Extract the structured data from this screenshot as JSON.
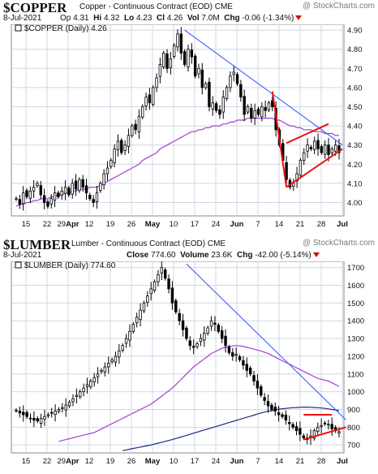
{
  "watermark": "@ StockCharts.com",
  "panels": [
    {
      "symbol": "$COPPER",
      "description": "Copper - Continuous Contract (EOD)",
      "exchange": "CME",
      "date": "8-Jul-2021",
      "quote": {
        "open_label": "Op",
        "open": "4.31",
        "high_label": "Hi",
        "high": "4.32",
        "low_label": "Lo",
        "low": "4.23",
        "close_label": "Cl",
        "close": "4.26",
        "vol_label": "Vol",
        "vol": "7.0M",
        "chg_label": "Chg",
        "chg": "-0.06 (-1.34%)"
      },
      "legend": "$COPPER (Daily) 4.26"
    },
    {
      "symbol": "$LUMBER",
      "description": "Lumber - Continuous Contract (EOD)",
      "exchange": "CME",
      "date": "8-Jul-2021",
      "quote": {
        "close_label": "Close",
        "close": "774.60",
        "vol_label": "Volume",
        "vol": "23.6K",
        "chg_label": "Chg",
        "chg": "-42.00 (-5.14%)"
      },
      "legend": "$LUMBER (Daily) 774.60"
    }
  ],
  "colors": {
    "up_candle": "#ffffff",
    "down_candle": "#000000",
    "ma_purple": "#a040d0",
    "ma_navy": "#1a2a80",
    "trend_blue": "#3050ff",
    "pattern_red": "#ee1010",
    "grid": "#cfd8e6"
  },
  "chart_data": [
    {
      "type": "candlestick",
      "title": "$COPPER (Daily) 4.26",
      "x_tick_labels": [
        "15",
        "22",
        "29Apr",
        "12",
        "19",
        "26",
        "May",
        "10",
        "17",
        "24",
        "Jun",
        "7",
        "14",
        "21",
        "28",
        "Jul"
      ],
      "bold_tick_labels": [
        "Apr",
        "May",
        "Jun",
        "Jul"
      ],
      "y_ticks": [
        4.0,
        4.1,
        4.2,
        4.3,
        4.4,
        4.5,
        4.6,
        4.7,
        4.8,
        4.9
      ],
      "ylim": [
        3.93,
        4.93
      ],
      "close": [
        4.02,
        3.99,
        4.05,
        4.03,
        4.06,
        4.08,
        4.1,
        4.04,
        4.0,
        3.98,
        4.02,
        4.05,
        4.03,
        4.06,
        4.08,
        4.04,
        4.1,
        4.07,
        4.12,
        4.08,
        4.05,
        4.02,
        4.0,
        4.05,
        4.1,
        4.15,
        4.18,
        4.22,
        4.28,
        4.32,
        4.26,
        4.3,
        4.35,
        4.4,
        4.38,
        4.45,
        4.5,
        4.55,
        4.52,
        4.6,
        4.65,
        4.72,
        4.78,
        4.7,
        4.75,
        4.82,
        4.88,
        4.78,
        4.72,
        4.8,
        4.76,
        4.66,
        4.7,
        4.6,
        4.62,
        4.5,
        4.52,
        4.48,
        4.46,
        4.55,
        4.6,
        4.66,
        4.68,
        4.62,
        4.55,
        4.46,
        4.5,
        4.44,
        4.48,
        4.46,
        4.5,
        4.48,
        4.52,
        4.5,
        4.38,
        4.3,
        4.22,
        4.12,
        4.08,
        4.1,
        4.15,
        4.22,
        4.26,
        4.3,
        4.28,
        4.32,
        4.28,
        4.26,
        4.3,
        4.25,
        4.28,
        4.3,
        4.26
      ],
      "ma_purple": [
        3.98,
        3.99,
        3.99,
        4.0,
        4.0,
        4.01,
        4.01,
        4.02,
        4.02,
        4.02,
        4.03,
        4.03,
        4.04,
        4.04,
        4.05,
        4.05,
        4.06,
        4.06,
        4.07,
        4.07,
        4.07,
        4.08,
        4.08,
        4.08,
        4.09,
        4.1,
        4.11,
        4.12,
        4.13,
        4.14,
        4.15,
        4.16,
        4.17,
        4.18,
        4.19,
        4.2,
        4.22,
        4.23,
        4.24,
        4.25,
        4.26,
        4.28,
        4.29,
        4.3,
        4.31,
        4.32,
        4.33,
        4.34,
        4.35,
        4.36,
        4.37,
        4.37,
        4.38,
        4.38,
        4.39,
        4.39,
        4.4,
        4.4,
        4.4,
        4.41,
        4.41,
        4.42,
        4.42,
        4.43,
        4.43,
        4.43,
        4.44,
        4.44,
        4.44,
        4.44,
        4.44,
        4.44,
        4.44,
        4.44,
        4.43,
        4.43,
        4.42,
        4.41,
        4.4,
        4.4,
        4.39,
        4.39,
        4.38,
        4.38,
        4.38,
        4.37,
        4.37,
        4.37,
        4.36,
        4.36,
        4.36,
        4.35,
        4.35
      ],
      "trendline": [
        [
          48,
          4.9
        ],
        [
          93,
          4.3
        ]
      ],
      "wedge_upper": [
        [
          77,
          4.31
        ],
        [
          89,
          4.41
        ]
      ],
      "wedge_lower": [
        [
          77,
          4.08
        ],
        [
          93,
          4.28
        ]
      ],
      "bull_flag_pole": [
        [
          73,
          4.58
        ],
        [
          77,
          4.08
        ]
      ]
    },
    {
      "type": "candlestick",
      "title": "$LUMBER (Daily) 774.60",
      "x_tick_labels": [
        "15",
        "22",
        "29Apr",
        "12",
        "19",
        "26",
        "May",
        "10",
        "17",
        "24",
        "Jun",
        "7",
        "14",
        "21",
        "28",
        "Jul"
      ],
      "bold_tick_labels": [
        "Apr",
        "May",
        "Jun",
        "Jul"
      ],
      "y_ticks": [
        700,
        800,
        900,
        1000,
        1100,
        1200,
        1300,
        1400,
        1500,
        1600,
        1700
      ],
      "ylim": [
        655,
        1735
      ],
      "close": [
        895,
        880,
        870,
        860,
        850,
        840,
        835,
        850,
        860,
        870,
        880,
        890,
        900,
        910,
        925,
        940,
        960,
        980,
        1000,
        1020,
        1040,
        1060,
        1080,
        1100,
        1120,
        1140,
        1160,
        1180,
        1200,
        1230,
        1260,
        1300,
        1340,
        1380,
        1420,
        1460,
        1500,
        1540,
        1580,
        1620,
        1660,
        1700,
        1640,
        1580,
        1500,
        1450,
        1400,
        1350,
        1300,
        1260,
        1250,
        1270,
        1300,
        1330,
        1360,
        1400,
        1380,
        1340,
        1300,
        1260,
        1220,
        1200,
        1210,
        1180,
        1150,
        1120,
        1100,
        1060,
        1020,
        980,
        950,
        920,
        900,
        890,
        870,
        860,
        840,
        820,
        800,
        780,
        760,
        740,
        730,
        750,
        780,
        800,
        810,
        820,
        816,
        790,
        780,
        774.6
      ],
      "ma_purple": [
        720,
        725,
        730,
        735,
        740,
        745,
        750,
        755,
        760,
        765,
        770,
        780,
        790,
        800,
        810,
        820,
        830,
        840,
        850,
        860,
        870,
        880,
        890,
        900,
        910,
        920,
        930,
        945,
        960,
        975,
        990,
        1005,
        1020,
        1040,
        1060,
        1080,
        1100,
        1120,
        1140,
        1155,
        1170,
        1185,
        1200,
        1215,
        1225,
        1235,
        1245,
        1250,
        1255,
        1258,
        1260,
        1258,
        1255,
        1250,
        1245,
        1240,
        1235,
        1230,
        1222,
        1215,
        1205,
        1195,
        1185,
        1175,
        1165,
        1155,
        1145,
        1135,
        1125,
        1115,
        1105,
        1095,
        1085,
        1075,
        1070,
        1065,
        1060,
        1050,
        1040,
        1030
      ],
      "ma_navy": [
        668,
        672,
        676,
        680,
        684,
        688,
        692,
        696,
        700,
        705,
        710,
        715,
        720,
        725,
        730,
        736,
        742,
        748,
        754,
        760,
        766,
        772,
        778,
        784,
        790,
        796,
        802,
        808,
        814,
        820,
        826,
        832,
        838,
        844,
        850,
        856,
        862,
        868,
        874,
        880,
        885,
        890,
        894,
        898,
        901,
        904,
        906,
        908,
        910,
        911,
        912,
        913,
        913,
        912,
        911,
        910,
        908,
        906,
        903,
        900,
        897,
        893
      ],
      "trendline": [
        [
          48,
          1720
        ],
        [
          93,
          840
        ]
      ],
      "wedge_upper": [
        [
          81,
          870
        ],
        [
          89,
          870
        ]
      ],
      "wedge_lower": [
        [
          81,
          730
        ],
        [
          93,
          800
        ]
      ]
    }
  ]
}
